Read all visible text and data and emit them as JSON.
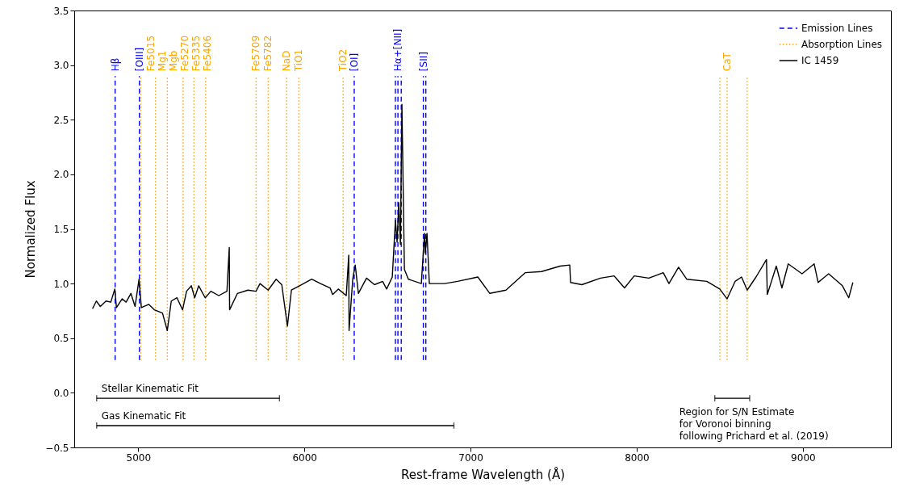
{
  "chart_data": {
    "type": "line",
    "xlabel": "Rest-frame Wavelength (Å)",
    "ylabel": "Normalized Flux",
    "xlim": [
      4615,
      9530
    ],
    "ylim": [
      -0.5,
      3.5
    ],
    "xticks": [
      5000,
      6000,
      7000,
      8000,
      9000
    ],
    "yticks": [
      {
        "value": -0.5,
        "label": "−0.5"
      },
      {
        "value": 0,
        "label": "0.0"
      },
      {
        "value": 0.5,
        "label": "0.5"
      },
      {
        "value": 1,
        "label": "1.0"
      },
      {
        "value": 1.5,
        "label": "1.5"
      },
      {
        "value": 2,
        "label": "2.0"
      },
      {
        "value": 2.5,
        "label": "2.5"
      },
      {
        "value": 3,
        "label": "3.0"
      },
      {
        "value": 3.5,
        "label": "3.5"
      }
    ],
    "grid": false,
    "legend": "top right",
    "series": [
      {
        "name": "Emission Lines",
        "color": "#0000ff",
        "line_style": "dashed",
        "x": [
          4861,
          4861,
          null,
          5007,
          5007,
          null,
          6300,
          6300,
          null,
          6548,
          6548,
          null,
          6563,
          6563,
          null,
          6583,
          6583,
          null,
          6716,
          6716,
          null,
          6731,
          6731
        ],
        "values": [
          0.3,
          2.9,
          null,
          0.3,
          2.9,
          null,
          0.3,
          2.9,
          null,
          0.3,
          2.9,
          null,
          0.3,
          2.9,
          null,
          0.3,
          2.9,
          null,
          0.3,
          2.9,
          null,
          0.3,
          2.9
        ]
      },
      {
        "name": "Absorption Lines",
        "color": "#ffa500",
        "line_style": "dotted",
        "x": [
          5015,
          5015,
          null,
          5104,
          5104,
          null,
          5175,
          5175,
          null,
          5270,
          5270,
          null,
          5335,
          5335,
          null,
          5406,
          5406,
          null,
          5709,
          5709,
          null,
          5782,
          5782,
          null,
          5893,
          5893,
          null,
          5966,
          5966,
          null,
          6233,
          6233,
          null,
          8500,
          8500,
          null,
          8544,
          8544,
          null,
          8665,
          8665
        ],
        "values": [
          0.3,
          2.9,
          null,
          0.3,
          2.9,
          null,
          0.3,
          2.9,
          null,
          0.3,
          2.9,
          null,
          0.3,
          2.9,
          null,
          0.3,
          2.9,
          null,
          0.3,
          2.9,
          null,
          0.3,
          2.9,
          null,
          0.3,
          2.9,
          null,
          0.3,
          2.9,
          null,
          0.3,
          2.9,
          null,
          0.3,
          2.9,
          null,
          0.3,
          2.9,
          null,
          0.3,
          2.9
        ]
      },
      {
        "name": "IC 1459",
        "color": "#000000",
        "line_style": "solid",
        "x": [
          4725,
          4748,
          4772,
          4806,
          4835,
          4859,
          4869,
          4903,
          4927,
          4956,
          4981,
          5005,
          5019,
          5063,
          5097,
          5146,
          5175,
          5199,
          5233,
          5267,
          5291,
          5320,
          5340,
          5364,
          5403,
          5437,
          5485,
          5534,
          5548,
          5550,
          5597,
          5660,
          5709,
          5733,
          5782,
          5830,
          5864,
          5898,
          5922,
          5971,
          6044,
          6097,
          6155,
          6170,
          6204,
          6252,
          6267,
          6269,
          6291,
          6306,
          6325,
          6374,
          6422,
          6471,
          6495,
          6529,
          6548,
          6558,
          6568,
          6578,
          6587,
          6602,
          6626,
          6704,
          6723,
          6728,
          6738,
          6752,
          6844,
          6922,
          7044,
          7116,
          7213,
          7330,
          7427,
          7539,
          7597,
          7602,
          7670,
          7782,
          7864,
          7927,
          7985,
          8073,
          8160,
          8194,
          8252,
          8301,
          8422,
          8500,
          8544,
          8592,
          8631,
          8665,
          8718,
          8781,
          8786,
          8840,
          8874,
          8912,
          8995,
          9068,
          9092,
          9155,
          9238,
          9276,
          9301
        ],
        "values": [
          0.77,
          0.84,
          0.79,
          0.84,
          0.83,
          0.95,
          0.78,
          0.86,
          0.83,
          0.91,
          0.79,
          1.04,
          0.78,
          0.81,
          0.76,
          0.73,
          0.57,
          0.84,
          0.87,
          0.76,
          0.93,
          0.98,
          0.87,
          0.98,
          0.87,
          0.93,
          0.89,
          0.93,
          1.33,
          0.76,
          0.91,
          0.94,
          0.93,
          1.0,
          0.94,
          1.04,
          0.99,
          0.61,
          0.94,
          0.98,
          1.04,
          1.0,
          0.96,
          0.9,
          0.95,
          0.89,
          1.26,
          0.57,
          1.04,
          1.17,
          0.91,
          1.05,
          0.99,
          1.02,
          0.95,
          1.06,
          1.58,
          1.38,
          1.74,
          1.36,
          2.64,
          1.13,
          1.04,
          1.0,
          1.46,
          1.28,
          1.46,
          1.0,
          1.0,
          1.02,
          1.06,
          0.91,
          0.94,
          1.1,
          1.11,
          1.16,
          1.17,
          1.01,
          0.99,
          1.05,
          1.07,
          0.96,
          1.07,
          1.05,
          1.1,
          1.0,
          1.15,
          1.04,
          1.02,
          0.95,
          0.86,
          1.02,
          1.06,
          0.94,
          1.06,
          1.22,
          0.9,
          1.16,
          0.96,
          1.18,
          1.09,
          1.18,
          1.01,
          1.09,
          0.98,
          0.87,
          1.01
        ]
      },
      {
        "color": "#000000",
        "line_style": "solid",
        "x": [
          4750,
          5850,
          null,
          4750,
          6900,
          null,
          8470,
          8680
        ],
        "values": [
          -0.05,
          -0.05,
          null,
          -0.3,
          -0.3,
          null,
          -0.05,
          -0.05
        ]
      }
    ],
    "annotations": [
      {
        "text": "Hβ",
        "x": 4861,
        "y": 2.9
      },
      {
        "text": "[OIII]",
        "x": 5007,
        "y": 2.9
      },
      {
        "text": "Fe5015",
        "x": 5015,
        "y": 2.9
      },
      {
        "text": "Mg1",
        "x": 5104,
        "y": 2.9
      },
      {
        "text": "Mgb",
        "x": 5175,
        "y": 2.9
      },
      {
        "text": "Fe5270",
        "x": 5270,
        "y": 2.9
      },
      {
        "text": "Fe5335",
        "x": 5335,
        "y": 2.9
      },
      {
        "text": "Fe5406",
        "x": 5406,
        "y": 2.9
      },
      {
        "text": "Fe5709",
        "x": 5709,
        "y": 2.9
      },
      {
        "text": "Fe5782",
        "x": 5782,
        "y": 2.9
      },
      {
        "text": "NaD",
        "x": 5893,
        "y": 2.9
      },
      {
        "text": "TiO1",
        "x": 5966,
        "y": 2.9
      },
      {
        "text": "TiO2",
        "x": 6233,
        "y": 2.9
      },
      {
        "text": "[OI]",
        "x": 6300,
        "y": 2.9
      },
      {
        "text": "Hα+[NII]",
        "x": 6563,
        "y": 2.9
      },
      {
        "text": "[SII]",
        "x": 6716,
        "y": 2.9
      },
      {
        "text": "CaT",
        "x": 8544,
        "y": 2.9
      },
      {
        "text": "Stellar Kinematic Fit",
        "x": 4750,
        "y": -0.05
      },
      {
        "text": "Gas Kinematic Fit",
        "x": 4750,
        "y": -0.3
      },
      {
        "text": "Region for S/N Estimate\nfor Voronoi binning\nfollowing Prichard et al. (2019)",
        "x": 8470,
        "y": -0.05
      }
    ]
  }
}
